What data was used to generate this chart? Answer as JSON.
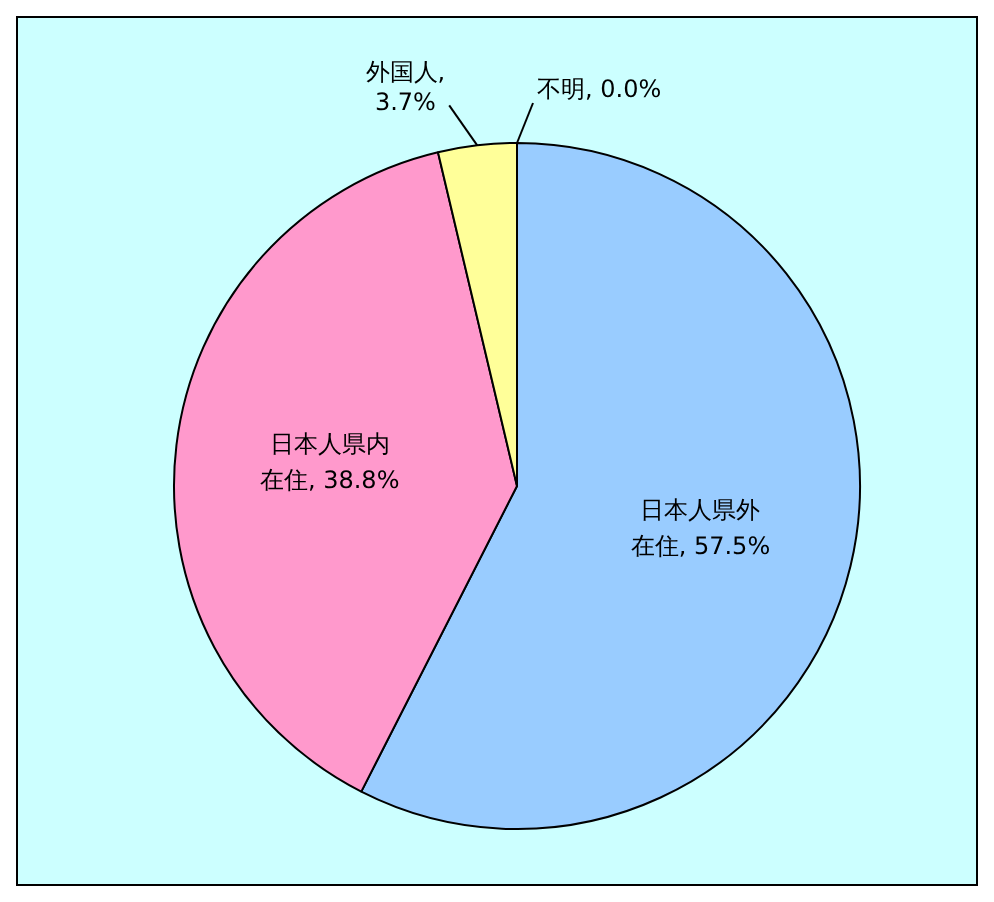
{
  "chart_data": {
    "type": "pie",
    "categories": [
      "日本人県外在住",
      "日本人県内在住",
      "外国人",
      "不明"
    ],
    "values": [
      57.5,
      38.8,
      3.7,
      0.0
    ],
    "colors": [
      "#99ccff",
      "#ff99cc",
      "#ffff99",
      "#ffffff"
    ],
    "value_labels": [
      ", 57.5%",
      ", 38.8%",
      ", 3.7%",
      ", 0.0%"
    ],
    "legend": false
  }
}
